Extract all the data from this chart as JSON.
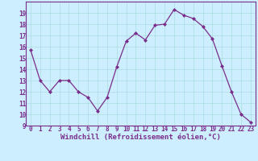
{
  "x": [
    0,
    1,
    2,
    3,
    4,
    5,
    6,
    7,
    8,
    9,
    10,
    11,
    12,
    13,
    14,
    15,
    16,
    17,
    18,
    19,
    20,
    21,
    22,
    23
  ],
  "y": [
    15.7,
    13.0,
    12.0,
    13.0,
    13.0,
    12.0,
    11.5,
    10.3,
    11.5,
    14.2,
    16.5,
    17.2,
    16.6,
    17.9,
    18.0,
    19.3,
    18.8,
    18.5,
    17.8,
    16.7,
    14.3,
    12.0,
    10.0,
    9.3
  ],
  "line_color": "#7b2d8b",
  "marker": "D",
  "marker_size": 2.0,
  "bg_color": "#cceeff",
  "grid_color": "#aadddd",
  "xlabel": "Windchill (Refroidissement éolien,°C)",
  "xlabel_color": "#7b2d8b",
  "tick_color": "#7b2d8b",
  "ylim": [
    9,
    20
  ],
  "xlim": [
    -0.5,
    23.5
  ],
  "yticks": [
    9,
    10,
    11,
    12,
    13,
    14,
    15,
    16,
    17,
    18,
    19
  ],
  "xticks": [
    0,
    1,
    2,
    3,
    4,
    5,
    6,
    7,
    8,
    9,
    10,
    11,
    12,
    13,
    14,
    15,
    16,
    17,
    18,
    19,
    20,
    21,
    22,
    23
  ],
  "tick_fontsize": 5.5,
  "xlabel_fontsize": 6.5,
  "spine_color": "#7b2d8b",
  "linewidth": 0.9
}
